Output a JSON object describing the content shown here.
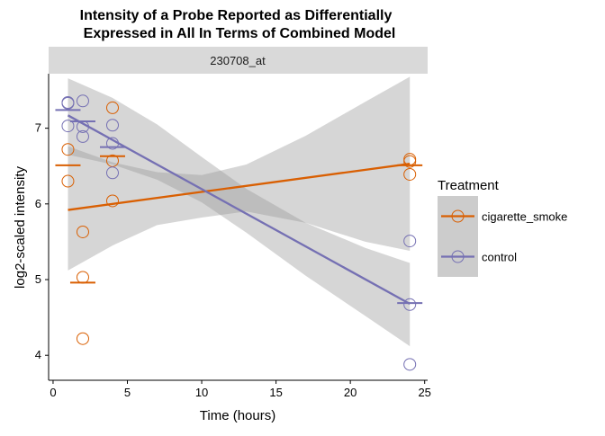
{
  "chart_data": {
    "type": "scatter",
    "title_line1": "Intensity of a Probe Reported as Differentially",
    "title_line2": "Expressed in All In Terms of Combined Model",
    "facet_label": "230708_at",
    "xlabel": "Time (hours)",
    "ylabel": "log2-scaled intensity",
    "xlim": [
      -0.3,
      25.2
    ],
    "ylim": [
      3.67,
      7.72
    ],
    "x_ticks": [
      0,
      5,
      10,
      15,
      20,
      25
    ],
    "y_ticks": [
      4,
      5,
      6,
      7
    ],
    "grid": false,
    "legend": {
      "title": "Treatment",
      "placement": "right",
      "entries": [
        "cigarette_smoke",
        "control"
      ]
    },
    "series": [
      {
        "name": "cigarette_smoke",
        "color": "#D95F02",
        "points": [
          {
            "x": 1,
            "y": 6.72
          },
          {
            "x": 1,
            "y": 6.3
          },
          {
            "x": 2,
            "y": 5.63
          },
          {
            "x": 2,
            "y": 5.03
          },
          {
            "x": 2,
            "y": 4.22
          },
          {
            "x": 4,
            "y": 7.27
          },
          {
            "x": 4,
            "y": 6.57
          },
          {
            "x": 4,
            "y": 6.04
          },
          {
            "x": 24,
            "y": 6.59
          },
          {
            "x": 24,
            "y": 6.56
          },
          {
            "x": 24,
            "y": 6.39
          }
        ],
        "means": [
          {
            "x": 1,
            "y": 6.51
          },
          {
            "x": 2,
            "y": 4.96
          },
          {
            "x": 4,
            "y": 6.63
          },
          {
            "x": 24,
            "y": 6.51
          }
        ],
        "fit": {
          "x": [
            1,
            24
          ],
          "y": [
            5.92,
            6.53
          ]
        },
        "ci_lower": [
          5.12,
          5.45,
          5.72,
          5.82,
          5.9,
          5.75,
          5.5,
          5.38
        ],
        "ci_upper": [
          6.76,
          6.55,
          6.42,
          6.38,
          6.52,
          6.9,
          7.35,
          7.68
        ],
        "ci_x": [
          1,
          4,
          7,
          10,
          13,
          17,
          21,
          24
        ]
      },
      {
        "name": "control",
        "color": "#7570B3",
        "points": [
          {
            "x": 1,
            "y": 7.34
          },
          {
            "x": 1,
            "y": 7.33
          },
          {
            "x": 1,
            "y": 7.03
          },
          {
            "x": 2,
            "y": 7.36
          },
          {
            "x": 2,
            "y": 7.02
          },
          {
            "x": 2,
            "y": 6.89
          },
          {
            "x": 4,
            "y": 7.04
          },
          {
            "x": 4,
            "y": 6.8
          },
          {
            "x": 4,
            "y": 6.41
          },
          {
            "x": 24,
            "y": 5.51
          },
          {
            "x": 24,
            "y": 4.67
          },
          {
            "x": 24,
            "y": 3.88
          }
        ],
        "means": [
          {
            "x": 1,
            "y": 7.24
          },
          {
            "x": 2,
            "y": 7.09
          },
          {
            "x": 4,
            "y": 6.75
          },
          {
            "x": 24,
            "y": 4.69
          }
        ],
        "fit": {
          "x": [
            1,
            24
          ],
          "y": [
            7.17,
            4.68
          ]
        },
        "ci_lower": [
          6.65,
          6.52,
          6.32,
          6.02,
          5.62,
          5.05,
          4.52,
          4.12
        ],
        "ci_upper": [
          7.66,
          7.4,
          7.05,
          6.62,
          6.2,
          5.75,
          5.42,
          5.22
        ],
        "ci_x": [
          1,
          4,
          7,
          10,
          13,
          17,
          21,
          24
        ]
      }
    ]
  }
}
